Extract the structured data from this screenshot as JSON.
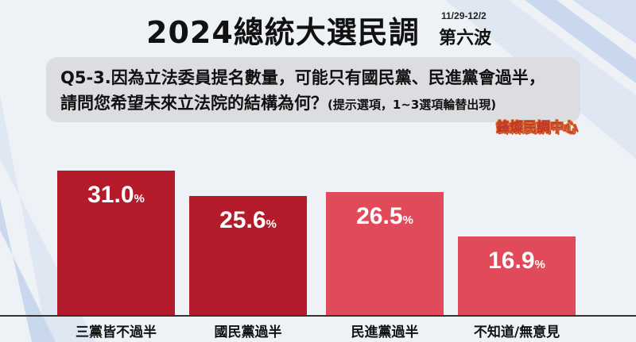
{
  "header": {
    "title": "2024總統大選民調",
    "date": "11/29-12/2",
    "wave": "第六波"
  },
  "question": {
    "line1": "Q5-3.因為立法委員提名數量，可能只有國民黨、民進黨會過半，",
    "line2": "請問您希望未來立法院的結構為何？",
    "note": "(提示選項，1~3選項輪替出現)"
  },
  "source": "鋒燦民調中心",
  "colors": {
    "dark_red": "#b31b2a",
    "light_red": "#e04a5a"
  },
  "chart_data": {
    "type": "bar",
    "categories": [
      "三黨皆不過半",
      "國民黨過半",
      "民進黨過半",
      "不知道/無意見"
    ],
    "values": [
      31.0,
      25.6,
      26.5,
      16.9
    ],
    "value_labels": [
      "31.0",
      "25.6",
      "26.5",
      "16.9"
    ],
    "unit": "%",
    "bar_colors": [
      "#b31b2a",
      "#b31b2a",
      "#e04a5a",
      "#e04a5a"
    ],
    "title": "2024總統大選民調",
    "xlabel": "",
    "ylabel": "",
    "ylim": [
      0,
      35
    ],
    "grid": false
  }
}
